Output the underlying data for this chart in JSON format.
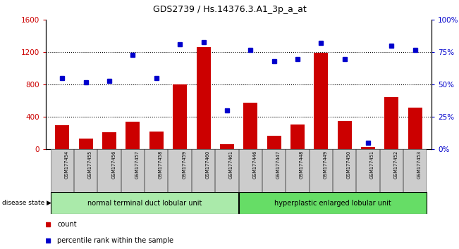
{
  "title": "GDS2739 / Hs.14376.3.A1_3p_a_at",
  "samples": [
    "GSM177454",
    "GSM177455",
    "GSM177456",
    "GSM177457",
    "GSM177458",
    "GSM177459",
    "GSM177460",
    "GSM177461",
    "GSM177446",
    "GSM177447",
    "GSM177448",
    "GSM177449",
    "GSM177450",
    "GSM177451",
    "GSM177452",
    "GSM177453"
  ],
  "counts": [
    300,
    130,
    210,
    340,
    220,
    800,
    1260,
    60,
    580,
    170,
    310,
    1190,
    350,
    30,
    650,
    520
  ],
  "percentiles": [
    55,
    52,
    53,
    73,
    55,
    81,
    83,
    30,
    77,
    68,
    70,
    82,
    70,
    5,
    80,
    77
  ],
  "bar_color": "#cc0000",
  "dot_color": "#0000cc",
  "group1_label": "normal terminal duct lobular unit",
  "group2_label": "hyperplastic enlarged lobular unit",
  "group1_count": 8,
  "group2_count": 8,
  "group1_color": "#aaeaaa",
  "group2_color": "#66dd66",
  "disease_state_label": "disease state",
  "ylim_left": [
    0,
    1600
  ],
  "ylim_right": [
    0,
    100
  ],
  "yticks_left": [
    0,
    400,
    800,
    1200,
    1600
  ],
  "yticks_right": [
    0,
    25,
    50,
    75,
    100
  ],
  "ytick_labels_right": [
    "0%",
    "25%",
    "50%",
    "75%",
    "100%"
  ],
  "tick_label_bg": "#cccccc",
  "legend_count_label": "count",
  "legend_pct_label": "percentile rank within the sample"
}
